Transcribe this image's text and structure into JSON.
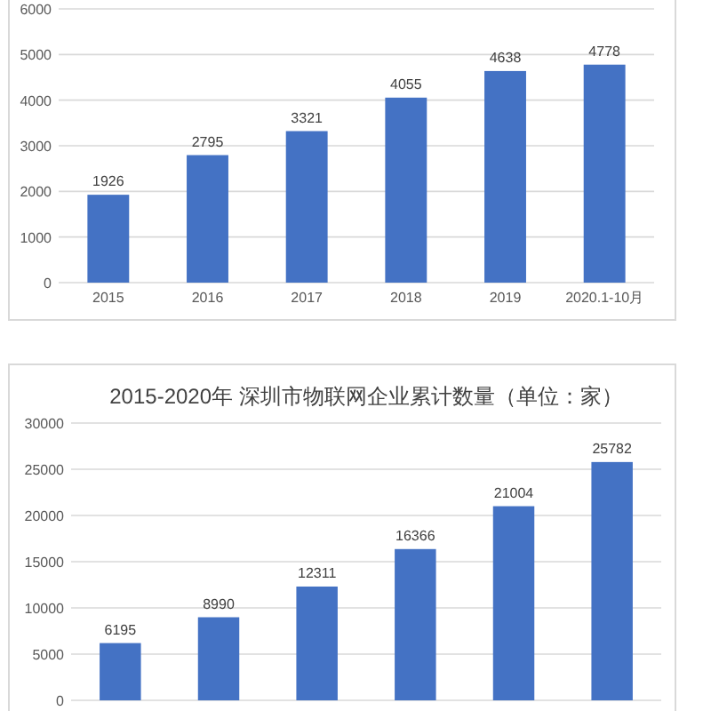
{
  "chart_data": [
    {
      "type": "bar",
      "categories": [
        "2015",
        "2016",
        "2017",
        "2018",
        "2019",
        "2020.1-10月"
      ],
      "values": [
        1926,
        2795,
        3321,
        4055,
        4638,
        4778
      ],
      "color": "#4472c4",
      "ylim": [
        0,
        6000
      ],
      "yticks": [
        0,
        1000,
        2000,
        3000,
        4000,
        5000,
        6000
      ],
      "grid": "y",
      "data_labels": true
    },
    {
      "type": "bar",
      "title": "2015-2020年  深圳市物联网企业累计数量（单位：家）",
      "categories": [
        null,
        null,
        null,
        null,
        null,
        null
      ],
      "values": [
        6195,
        8990,
        12311,
        16366,
        21004,
        25782
      ],
      "color": "#4472c4",
      "ylim": [
        0,
        30000
      ],
      "yticks": [
        0,
        5000,
        10000,
        15000,
        20000,
        25000,
        30000
      ],
      "grid": "y",
      "data_labels": true
    }
  ]
}
